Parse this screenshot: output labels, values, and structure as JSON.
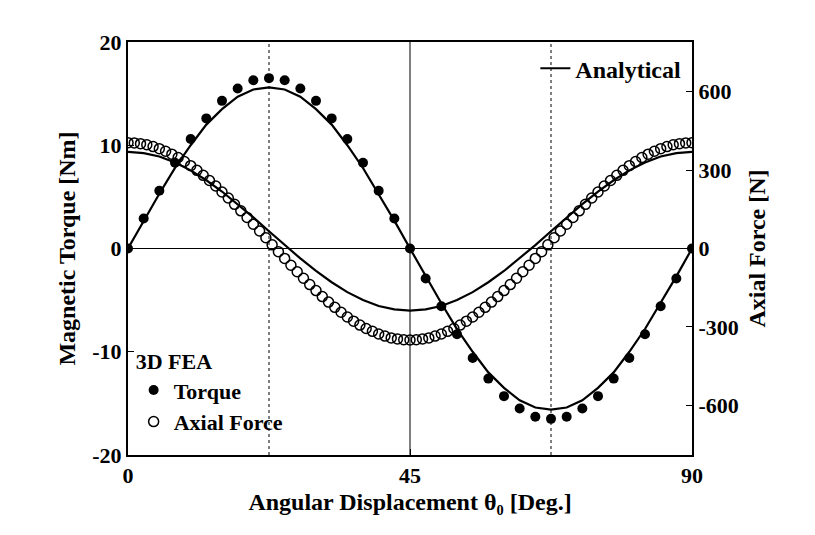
{
  "chart_data": {
    "type": "scatter",
    "x_label": "Angular Displacement θ₀ [Deg.]",
    "y_label": "Magnetic Torque [Nm]",
    "y2_label": "Axial Force [N]",
    "xlim": [
      0,
      90
    ],
    "xticks": [
      0,
      45,
      90
    ],
    "ylim": [
      -20,
      20
    ],
    "yticks": [
      -20,
      -10,
      0,
      10,
      20
    ],
    "y2lim": [
      -790,
      790
    ],
    "y2ticks": [
      -600,
      -300,
      0,
      300,
      600
    ],
    "grid": false,
    "legend": "top right",
    "vlines": [
      {
        "x": 22.5,
        "line_style": "dotted"
      },
      {
        "x": 45,
        "line_style": "solid"
      },
      {
        "x": 67.5,
        "line_style": "dotted"
      }
    ],
    "hlines": [
      {
        "y": 0,
        "line_style": "solid"
      }
    ],
    "series": [
      {
        "name": "Analytical",
        "type": "line",
        "line_style": "solid",
        "color": "#000000",
        "axis": "y",
        "x": [
          0,
          2.5,
          5,
          7.5,
          10,
          12.5,
          15,
          17.5,
          20,
          22.5,
          25,
          27.5,
          30,
          32.5,
          35,
          37.5,
          40,
          42.5,
          45,
          47.5,
          50,
          52.5,
          55,
          57.5,
          60,
          62.5,
          65,
          67.5,
          70,
          72.5,
          75,
          77.5,
          80,
          82.5,
          85,
          87.5,
          90
        ],
        "values": [
          0,
          2.7,
          5.3,
          7.8,
          10.0,
          12.0,
          13.5,
          14.7,
          15.4,
          15.6,
          15.4,
          14.7,
          13.5,
          12.0,
          10.0,
          7.8,
          5.3,
          2.7,
          0,
          -2.7,
          -5.3,
          -7.8,
          -10.0,
          -12.0,
          -13.5,
          -14.7,
          -15.4,
          -15.6,
          -15.4,
          -14.7,
          -13.5,
          -12.0,
          -10.0,
          -7.8,
          -5.3,
          -2.7,
          0
        ]
      },
      {
        "name": "Analytical",
        "type": "line",
        "line_style": "solid",
        "color": "#000000",
        "axis": "y2",
        "x": [
          0,
          2.5,
          5,
          7.5,
          10,
          12.5,
          15,
          17.5,
          20,
          22.5,
          25,
          27.5,
          30,
          32.5,
          35,
          37.5,
          40,
          42.5,
          45,
          47.5,
          50,
          52.5,
          55,
          57.5,
          60,
          62.5,
          65,
          67.5,
          70,
          72.5,
          75,
          77.5,
          80,
          82.5,
          85,
          87.5,
          90
        ],
        "values": [
          370,
          365,
          352,
          329,
          299,
          261,
          218,
          170,
          119,
          66,
          13,
          -38,
          -86,
          -129,
          -167,
          -197,
          -220,
          -233,
          -238,
          -233,
          -220,
          -197,
          -167,
          -129,
          -86,
          -38,
          13,
          66,
          119,
          170,
          218,
          261,
          299,
          329,
          352,
          365,
          370
        ]
      },
      {
        "name": "Torque",
        "group": "3D FEA",
        "type": "scatter",
        "marker": "circle",
        "color": "#000000",
        "axis": "y",
        "x": [
          0,
          2.5,
          5,
          7.5,
          10,
          12.5,
          15,
          17.5,
          20,
          22.5,
          25,
          27.5,
          30,
          32.5,
          35,
          37.5,
          40,
          42.5,
          45,
          47.5,
          50,
          52.5,
          55,
          57.5,
          60,
          62.5,
          65,
          67.5,
          70,
          72.5,
          75,
          77.5,
          80,
          82.5,
          85,
          87.5,
          90
        ],
        "values": [
          0,
          2.9,
          5.6,
          8.3,
          10.6,
          12.6,
          14.3,
          15.5,
          16.3,
          16.5,
          16.3,
          15.5,
          14.3,
          12.6,
          10.6,
          8.3,
          5.6,
          2.9,
          0,
          -2.9,
          -5.6,
          -8.3,
          -10.6,
          -12.6,
          -14.3,
          -15.5,
          -16.3,
          -16.5,
          -16.3,
          -15.5,
          -14.3,
          -12.6,
          -10.6,
          -8.3,
          -5.6,
          -2.9,
          0
        ]
      },
      {
        "name": "Axial Force",
        "group": "3D FEA",
        "type": "scatter",
        "marker": "circle-open",
        "color": "#000000",
        "axis": "y2",
        "x": [
          0,
          1,
          2,
          3,
          4,
          5,
          6,
          7,
          8,
          9,
          10,
          11,
          12,
          13,
          14,
          15,
          16,
          17,
          18,
          19,
          20,
          21,
          22,
          23,
          24,
          25,
          26,
          27,
          28,
          29,
          30,
          31,
          32,
          33,
          34,
          35,
          36,
          37,
          38,
          39,
          40,
          41,
          42,
          43,
          44,
          45,
          46,
          47,
          48,
          49,
          50,
          51,
          52,
          53,
          54,
          55,
          56,
          57,
          58,
          59,
          60,
          61,
          62,
          63,
          64,
          65,
          66,
          67,
          68,
          69,
          70,
          71,
          72,
          73,
          74,
          75,
          76,
          77,
          78,
          79,
          80,
          81,
          82,
          83,
          84,
          85,
          86,
          87,
          88,
          89,
          90
        ],
        "values": [
          405,
          404,
          401,
          397,
          390,
          382,
          372,
          361,
          348,
          333,
          317,
          299,
          280,
          260,
          239,
          216,
          193,
          169,
          144,
          119,
          93,
          67,
          41,
          14,
          -12,
          -38,
          -64,
          -89,
          -114,
          -138,
          -161,
          -184,
          -205,
          -225,
          -244,
          -262,
          -278,
          -293,
          -306,
          -317,
          -327,
          -335,
          -342,
          -346,
          -349,
          -350,
          -349,
          -346,
          -342,
          -335,
          -327,
          -317,
          -306,
          -293,
          -278,
          -262,
          -244,
          -225,
          -205,
          -184,
          -161,
          -138,
          -114,
          -89,
          -64,
          -38,
          -12,
          14,
          41,
          67,
          93,
          119,
          144,
          169,
          193,
          216,
          239,
          260,
          280,
          299,
          317,
          333,
          348,
          361,
          372,
          382,
          390,
          397,
          401,
          404,
          405
        ]
      }
    ]
  }
}
